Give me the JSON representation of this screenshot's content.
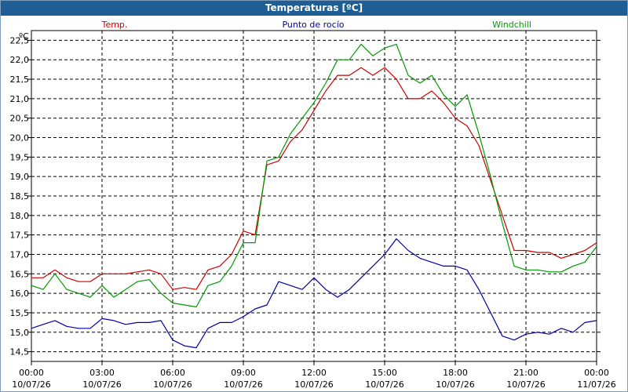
{
  "window": {
    "title": "Temperaturas [ºC]"
  },
  "colors": {
    "temp": "#CC0000",
    "dew": "#0000AA",
    "windchill": "#009900",
    "grid": "#000000",
    "titlebar": "#1F5D95"
  },
  "chart_data": {
    "type": "line",
    "title": "Temperaturas [ºC]",
    "ylabel": "ºC",
    "xlabel": "",
    "ylim": [
      14.25,
      22.75
    ],
    "y_ticks": [
      "14,5",
      "15,0",
      "15,5",
      "16,0",
      "16,5",
      "17,0",
      "17,5",
      "18,0",
      "18,5",
      "19,0",
      "19,5",
      "20,0",
      "20,5",
      "21,0",
      "21,5",
      "22,0",
      "22,5"
    ],
    "x_ticks": [
      {
        "time": "00:00",
        "date": "10/07/26"
      },
      {
        "time": "03:00",
        "date": "10/07/26"
      },
      {
        "time": "06:00",
        "date": "10/07/26"
      },
      {
        "time": "09:00",
        "date": "10/07/26"
      },
      {
        "time": "12:00",
        "date": "10/07/26"
      },
      {
        "time": "15:00",
        "date": "10/07/26"
      },
      {
        "time": "18:00",
        "date": "10/07/26"
      },
      {
        "time": "21:00",
        "date": "10/07/26"
      },
      {
        "time": "00:00",
        "date": "11/07/26"
      }
    ],
    "grid": true,
    "legend_placement": "top",
    "x_hours": [
      0,
      0.5,
      1,
      1.5,
      2,
      2.5,
      3,
      3.5,
      4,
      4.5,
      5,
      5.5,
      6,
      6.5,
      7,
      7.5,
      8,
      8.5,
      9,
      9.5,
      10,
      10.5,
      11,
      11.5,
      12,
      12.5,
      13,
      13.5,
      14,
      14.5,
      15,
      15.5,
      16,
      16.5,
      17,
      17.5,
      18,
      18.5,
      19,
      19.5,
      20,
      20.5,
      21,
      21.5,
      22,
      22.5,
      23,
      23.5,
      24
    ],
    "series": [
      {
        "name": "Temp.",
        "key": "temp",
        "values": [
          16.4,
          16.4,
          16.6,
          16.4,
          16.3,
          16.3,
          16.5,
          16.5,
          16.5,
          16.55,
          16.6,
          16.5,
          16.1,
          16.15,
          16.1,
          16.6,
          16.7,
          17.0,
          17.6,
          17.5,
          19.3,
          19.4,
          19.9,
          20.2,
          20.7,
          21.2,
          21.6,
          21.6,
          21.8,
          21.6,
          21.8,
          21.5,
          21.0,
          21.0,
          21.2,
          20.9,
          20.5,
          20.3,
          19.8,
          18.9,
          18.0,
          17.1,
          17.1,
          17.05,
          17.05,
          16.9,
          17.0,
          17.1,
          17.3
        ]
      },
      {
        "name": "Punto de rocío",
        "key": "dew",
        "values": [
          15.1,
          15.2,
          15.3,
          15.15,
          15.1,
          15.1,
          15.35,
          15.3,
          15.2,
          15.25,
          15.25,
          15.3,
          14.8,
          14.65,
          14.6,
          15.1,
          15.25,
          15.25,
          15.4,
          15.6,
          15.7,
          16.3,
          16.2,
          16.1,
          16.4,
          16.1,
          15.9,
          16.1,
          16.4,
          16.7,
          17.0,
          17.4,
          17.1,
          16.9,
          16.8,
          16.7,
          16.7,
          16.6,
          16.1,
          15.5,
          14.9,
          14.8,
          14.95,
          15.0,
          14.95,
          15.1,
          15.0,
          15.25,
          15.3
        ]
      },
      {
        "name": "Windchill",
        "key": "windchill",
        "values": [
          16.2,
          16.1,
          16.5,
          16.1,
          16.0,
          15.9,
          16.2,
          15.9,
          16.1,
          16.3,
          16.35,
          16.0,
          15.75,
          15.7,
          15.65,
          16.2,
          16.3,
          16.7,
          17.3,
          17.3,
          19.4,
          19.5,
          20.1,
          20.5,
          20.9,
          21.4,
          22.0,
          22.0,
          22.4,
          22.1,
          22.3,
          22.4,
          21.6,
          21.4,
          21.6,
          21.1,
          20.8,
          21.1,
          20.1,
          19.0,
          17.8,
          16.7,
          16.6,
          16.6,
          16.55,
          16.55,
          16.7,
          16.8,
          17.2
        ]
      }
    ]
  }
}
